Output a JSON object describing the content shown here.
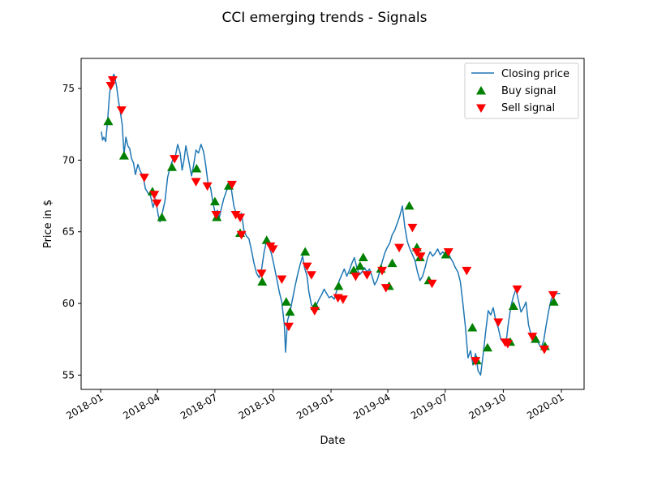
{
  "chart_data": {
    "type": "line",
    "title": "CCI emerging trends - Signals",
    "xlabel": "Date",
    "ylabel": "Price in $",
    "xlim": [
      "2017-12-01",
      "2020-02-06"
    ],
    "ylim": [
      54,
      77.1
    ],
    "grid": false,
    "legend_placement": "top-right",
    "x_ticks": [
      "2018-01",
      "2018-04",
      "2018-07",
      "2018-10",
      "2019-01",
      "2019-04",
      "2019-07",
      "2019-10",
      "2020-01"
    ],
    "y_ticks": [
      55,
      60,
      65,
      70,
      75
    ],
    "colors": {
      "line": "#1f77b4",
      "buy": "#008000",
      "sell": "#ff0000"
    },
    "series": [
      {
        "name": "Closing price",
        "kind": "line",
        "points": [
          [
            "2018-01-02",
            72.0
          ],
          [
            "2018-01-04",
            71.4
          ],
          [
            "2018-01-06",
            71.6
          ],
          [
            "2018-01-09",
            71.3
          ],
          [
            "2018-01-12",
            72.8
          ],
          [
            "2018-01-15",
            74.6
          ],
          [
            "2018-01-18",
            75.6
          ],
          [
            "2018-01-22",
            76.0
          ],
          [
            "2018-01-26",
            75.2
          ],
          [
            "2018-01-29",
            74.2
          ],
          [
            "2018-02-01",
            73.4
          ],
          [
            "2018-02-04",
            72.5
          ],
          [
            "2018-02-07",
            70.4
          ],
          [
            "2018-02-10",
            71.6
          ],
          [
            "2018-02-13",
            71.0
          ],
          [
            "2018-02-16",
            70.8
          ],
          [
            "2018-02-19",
            70.1
          ],
          [
            "2018-02-22",
            69.8
          ],
          [
            "2018-02-25",
            69.0
          ],
          [
            "2018-03-01",
            69.7
          ],
          [
            "2018-03-05",
            69.2
          ],
          [
            "2018-03-09",
            68.9
          ],
          [
            "2018-03-13",
            68.0
          ],
          [
            "2018-03-17",
            67.7
          ],
          [
            "2018-03-21",
            67.5
          ],
          [
            "2018-03-25",
            66.7
          ],
          [
            "2018-03-29",
            67.3
          ],
          [
            "2018-04-02",
            66.2
          ],
          [
            "2018-04-05",
            65.7
          ],
          [
            "2018-04-09",
            66.4
          ],
          [
            "2018-04-13",
            67.2
          ],
          [
            "2018-04-17",
            68.8
          ],
          [
            "2018-04-21",
            69.5
          ],
          [
            "2018-04-25",
            70.0
          ],
          [
            "2018-04-29",
            70.2
          ],
          [
            "2018-05-03",
            71.1
          ],
          [
            "2018-05-07",
            70.5
          ],
          [
            "2018-05-10",
            69.3
          ],
          [
            "2018-05-13",
            70.0
          ],
          [
            "2018-05-16",
            71.0
          ],
          [
            "2018-05-19",
            70.3
          ],
          [
            "2018-05-22",
            69.6
          ],
          [
            "2018-05-25",
            68.9
          ],
          [
            "2018-05-28",
            69.6
          ],
          [
            "2018-06-01",
            70.7
          ],
          [
            "2018-06-05",
            70.5
          ],
          [
            "2018-06-09",
            71.1
          ],
          [
            "2018-06-13",
            70.6
          ],
          [
            "2018-06-16",
            69.8
          ],
          [
            "2018-06-20",
            68.4
          ],
          [
            "2018-06-24",
            68.1
          ],
          [
            "2018-06-28",
            67.0
          ],
          [
            "2018-07-02",
            66.2
          ],
          [
            "2018-07-05",
            66.5
          ],
          [
            "2018-07-08",
            66.0
          ],
          [
            "2018-07-11",
            66.6
          ],
          [
            "2018-07-15",
            67.3
          ],
          [
            "2018-07-19",
            67.8
          ],
          [
            "2018-07-23",
            68.3
          ],
          [
            "2018-07-27",
            68.0
          ],
          [
            "2018-07-31",
            66.8
          ],
          [
            "2018-08-04",
            66.2
          ],
          [
            "2018-08-08",
            65.9
          ],
          [
            "2018-08-12",
            66.3
          ],
          [
            "2018-08-16",
            65.1
          ],
          [
            "2018-08-20",
            64.7
          ],
          [
            "2018-08-24",
            64.5
          ],
          [
            "2018-08-28",
            63.7
          ],
          [
            "2018-09-01",
            62.8
          ],
          [
            "2018-09-05",
            62.1
          ],
          [
            "2018-09-09",
            61.8
          ],
          [
            "2018-09-13",
            62.4
          ],
          [
            "2018-09-17",
            63.6
          ],
          [
            "2018-09-21",
            64.4
          ],
          [
            "2018-09-25",
            64.0
          ],
          [
            "2018-09-29",
            63.4
          ],
          [
            "2018-10-03",
            62.6
          ],
          [
            "2018-10-07",
            61.7
          ],
          [
            "2018-10-11",
            60.8
          ],
          [
            "2018-10-15",
            60.1
          ],
          [
            "2018-10-19",
            58.5
          ],
          [
            "2018-10-21",
            56.6
          ],
          [
            "2018-10-24",
            58.8
          ],
          [
            "2018-10-28",
            59.4
          ],
          [
            "2018-11-01",
            60.3
          ],
          [
            "2018-11-05",
            61.2
          ],
          [
            "2018-11-09",
            62.0
          ],
          [
            "2018-11-13",
            62.7
          ],
          [
            "2018-11-17",
            63.3
          ],
          [
            "2018-11-20",
            62.5
          ],
          [
            "2018-11-24",
            61.9
          ],
          [
            "2018-11-27",
            60.8
          ],
          [
            "2018-12-01",
            59.9
          ],
          [
            "2018-12-05",
            59.7
          ],
          [
            "2018-12-09",
            59.9
          ],
          [
            "2018-12-13",
            60.3
          ],
          [
            "2018-12-17",
            60.6
          ],
          [
            "2018-12-21",
            61.0
          ],
          [
            "2018-12-25",
            60.7
          ],
          [
            "2018-12-29",
            60.4
          ],
          [
            "2019-01-02",
            60.5
          ],
          [
            "2019-01-06",
            60.3
          ],
          [
            "2019-01-10",
            60.9
          ],
          [
            "2019-01-14",
            61.6
          ],
          [
            "2019-01-18",
            62.0
          ],
          [
            "2019-01-22",
            62.4
          ],
          [
            "2019-01-26",
            61.9
          ],
          [
            "2019-01-30",
            62.3
          ],
          [
            "2019-02-03",
            62.8
          ],
          [
            "2019-02-07",
            63.2
          ],
          [
            "2019-02-11",
            62.5
          ],
          [
            "2019-02-15",
            62.0
          ],
          [
            "2019-02-19",
            62.2
          ],
          [
            "2019-02-23",
            62.5
          ],
          [
            "2019-02-27",
            62.2
          ],
          [
            "2019-03-03",
            62.4
          ],
          [
            "2019-03-07",
            61.9
          ],
          [
            "2019-03-11",
            61.3
          ],
          [
            "2019-03-15",
            61.6
          ],
          [
            "2019-03-19",
            62.2
          ],
          [
            "2019-03-23",
            62.9
          ],
          [
            "2019-03-27",
            63.5
          ],
          [
            "2019-03-31",
            63.9
          ],
          [
            "2019-04-04",
            64.2
          ],
          [
            "2019-04-08",
            64.8
          ],
          [
            "2019-04-12",
            65.1
          ],
          [
            "2019-04-16",
            65.6
          ],
          [
            "2019-04-20",
            66.1
          ],
          [
            "2019-04-24",
            66.8
          ],
          [
            "2019-04-28",
            65.3
          ],
          [
            "2019-05-02",
            64.3
          ],
          [
            "2019-05-06",
            63.8
          ],
          [
            "2019-05-10",
            63.4
          ],
          [
            "2019-05-14",
            63.0
          ],
          [
            "2019-05-18",
            62.2
          ],
          [
            "2019-05-22",
            61.6
          ],
          [
            "2019-05-26",
            61.9
          ],
          [
            "2019-05-30",
            62.5
          ],
          [
            "2019-06-03",
            63.2
          ],
          [
            "2019-06-07",
            63.6
          ],
          [
            "2019-06-11",
            63.3
          ],
          [
            "2019-06-15",
            63.5
          ],
          [
            "2019-06-19",
            63.8
          ],
          [
            "2019-06-23",
            63.4
          ],
          [
            "2019-06-27",
            63.6
          ],
          [
            "2019-07-01",
            63.4
          ],
          [
            "2019-07-05",
            63.6
          ],
          [
            "2019-07-09",
            63.2
          ],
          [
            "2019-07-13",
            62.9
          ],
          [
            "2019-07-17",
            62.5
          ],
          [
            "2019-07-21",
            62.2
          ],
          [
            "2019-07-25",
            61.5
          ],
          [
            "2019-07-29",
            60.0
          ],
          [
            "2019-08-02",
            58.3
          ],
          [
            "2019-08-06",
            56.2
          ],
          [
            "2019-08-10",
            56.7
          ],
          [
            "2019-08-14",
            55.7
          ],
          [
            "2019-08-18",
            56.5
          ],
          [
            "2019-08-22",
            55.3
          ],
          [
            "2019-08-26",
            55.0
          ],
          [
            "2019-08-30",
            56.4
          ],
          [
            "2019-09-03",
            58.0
          ],
          [
            "2019-09-07",
            59.5
          ],
          [
            "2019-09-11",
            59.2
          ],
          [
            "2019-09-15",
            59.7
          ],
          [
            "2019-09-19",
            58.8
          ],
          [
            "2019-09-23",
            58.3
          ],
          [
            "2019-09-27",
            57.5
          ],
          [
            "2019-10-01",
            57.3
          ],
          [
            "2019-10-05",
            57.1
          ],
          [
            "2019-10-09",
            58.6
          ],
          [
            "2019-10-13",
            59.8
          ],
          [
            "2019-10-17",
            60.5
          ],
          [
            "2019-10-21",
            61.0
          ],
          [
            "2019-10-25",
            60.2
          ],
          [
            "2019-10-29",
            59.4
          ],
          [
            "2019-11-02",
            59.7
          ],
          [
            "2019-11-06",
            60.1
          ],
          [
            "2019-11-10",
            58.5
          ],
          [
            "2019-11-14",
            57.8
          ],
          [
            "2019-11-18",
            57.4
          ],
          [
            "2019-11-22",
            57.7
          ],
          [
            "2019-11-26",
            57.2
          ],
          [
            "2019-11-30",
            56.9
          ],
          [
            "2019-12-04",
            57.4
          ],
          [
            "2019-12-08",
            58.5
          ],
          [
            "2019-12-12",
            59.5
          ],
          [
            "2019-12-16",
            60.3
          ],
          [
            "2019-12-20",
            60.6
          ],
          [
            "2019-12-24",
            60.7
          ],
          [
            "2019-12-30",
            60.7
          ]
        ]
      },
      {
        "name": "Buy signal",
        "kind": "scatter",
        "marker": "triangle-up",
        "points": [
          [
            "2018-01-13",
            72.7
          ],
          [
            "2018-02-07",
            70.3
          ],
          [
            "2018-03-24",
            67.8
          ],
          [
            "2018-04-08",
            66.0
          ],
          [
            "2018-04-24",
            69.5
          ],
          [
            "2018-06-02",
            69.4
          ],
          [
            "2018-07-01",
            67.1
          ],
          [
            "2018-07-04",
            66.0
          ],
          [
            "2018-07-23",
            68.2
          ],
          [
            "2018-08-10",
            64.9
          ],
          [
            "2018-09-14",
            61.5
          ],
          [
            "2018-09-21",
            64.4
          ],
          [
            "2018-10-22",
            60.1
          ],
          [
            "2018-10-28",
            59.4
          ],
          [
            "2018-11-21",
            63.6
          ],
          [
            "2018-12-07",
            59.8
          ],
          [
            "2019-01-13",
            61.2
          ],
          [
            "2019-02-06",
            62.3
          ],
          [
            "2019-02-16",
            62.6
          ],
          [
            "2019-02-21",
            63.2
          ],
          [
            "2019-03-21",
            62.4
          ],
          [
            "2019-04-03",
            61.2
          ],
          [
            "2019-04-08",
            62.8
          ],
          [
            "2019-05-05",
            66.8
          ],
          [
            "2019-05-17",
            63.9
          ],
          [
            "2019-05-22",
            63.2
          ],
          [
            "2019-06-05",
            61.6
          ],
          [
            "2019-07-02",
            63.4
          ],
          [
            "2019-08-13",
            58.3
          ],
          [
            "2019-08-20",
            56.0
          ],
          [
            "2019-09-06",
            56.9
          ],
          [
            "2019-10-12",
            57.3
          ],
          [
            "2019-10-17",
            59.8
          ],
          [
            "2019-11-21",
            57.5
          ],
          [
            "2019-12-06",
            57.0
          ],
          [
            "2019-12-20",
            60.1
          ]
        ]
      },
      {
        "name": "Sell signal",
        "kind": "scatter",
        "marker": "triangle-down",
        "points": [
          [
            "2018-01-17",
            75.2
          ],
          [
            "2018-01-20",
            75.6
          ],
          [
            "2018-02-03",
            73.5
          ],
          [
            "2018-03-11",
            68.8
          ],
          [
            "2018-03-27",
            67.6
          ],
          [
            "2018-03-31",
            67.0
          ],
          [
            "2018-04-28",
            70.1
          ],
          [
            "2018-06-01",
            68.5
          ],
          [
            "2018-06-19",
            68.2
          ],
          [
            "2018-07-03",
            66.2
          ],
          [
            "2018-07-28",
            68.3
          ],
          [
            "2018-08-03",
            66.2
          ],
          [
            "2018-08-10",
            66.0
          ],
          [
            "2018-08-12",
            64.8
          ],
          [
            "2018-09-13",
            62.1
          ],
          [
            "2018-09-27",
            64.0
          ],
          [
            "2018-10-01",
            63.8
          ],
          [
            "2018-10-15",
            61.7
          ],
          [
            "2018-10-26",
            58.4
          ],
          [
            "2018-11-24",
            62.6
          ],
          [
            "2018-12-01",
            62.0
          ],
          [
            "2018-12-06",
            59.5
          ],
          [
            "2019-01-12",
            60.4
          ],
          [
            "2019-01-20",
            60.3
          ],
          [
            "2019-02-09",
            61.9
          ],
          [
            "2019-02-27",
            62.0
          ],
          [
            "2019-03-23",
            62.3
          ],
          [
            "2019-03-29",
            61.1
          ],
          [
            "2019-04-19",
            63.9
          ],
          [
            "2019-05-10",
            65.3
          ],
          [
            "2019-05-17",
            63.6
          ],
          [
            "2019-05-23",
            63.3
          ],
          [
            "2019-06-10",
            61.4
          ],
          [
            "2019-07-06",
            63.6
          ],
          [
            "2019-08-04",
            62.3
          ],
          [
            "2019-08-18",
            56.0
          ],
          [
            "2019-09-23",
            58.7
          ],
          [
            "2019-10-04",
            57.3
          ],
          [
            "2019-10-08",
            57.2
          ],
          [
            "2019-10-23",
            61.0
          ],
          [
            "2019-11-16",
            57.7
          ],
          [
            "2019-12-05",
            56.8
          ],
          [
            "2019-12-19",
            60.6
          ]
        ]
      }
    ]
  }
}
